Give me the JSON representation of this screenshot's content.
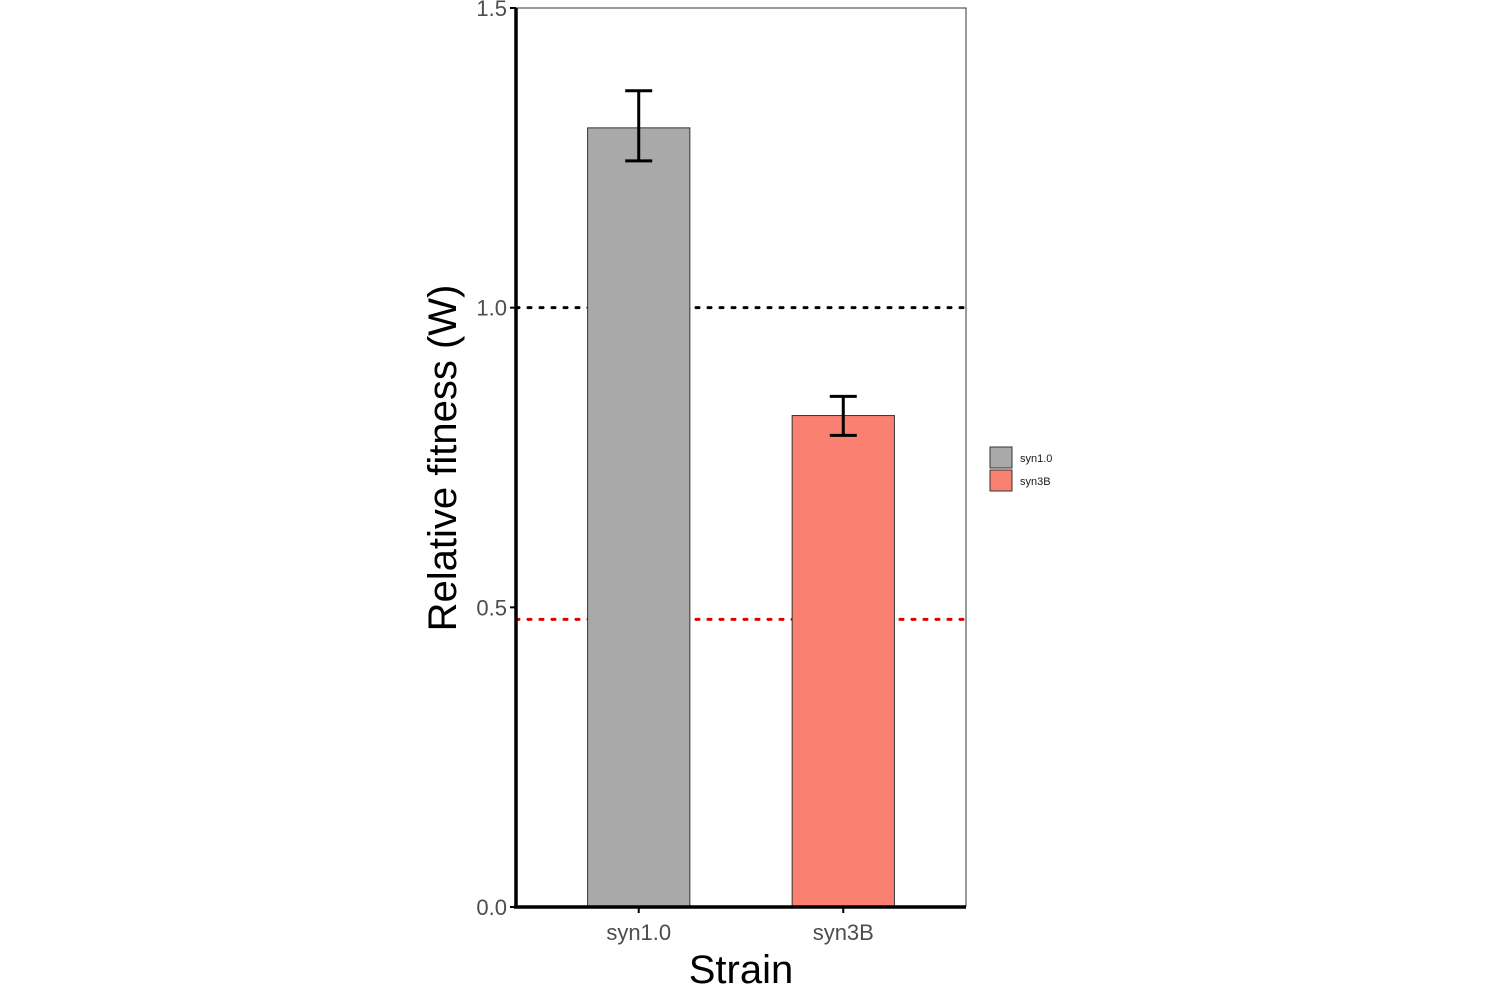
{
  "chart_data": {
    "type": "bar",
    "categories": [
      "syn1.0",
      "syn3B"
    ],
    "values": [
      1.3,
      0.82
    ],
    "error_bars": [
      {
        "low": 1.245,
        "high": 1.362
      },
      {
        "low": 0.787,
        "high": 0.852
      }
    ],
    "colors": [
      "#a9a9a9",
      "#fa8072"
    ],
    "xlabel": "Strain",
    "ylabel": "Relative fitness (W)",
    "ylim": [
      0,
      1.5
    ],
    "yticks": [
      "0.0",
      "0.5",
      "1.0",
      "1.5"
    ],
    "ytick_values": [
      0,
      0.5,
      1.0,
      1.5
    ],
    "reference_lines": [
      {
        "y": 1.0,
        "color": "#000000",
        "style": "dotted"
      },
      {
        "y": 0.48,
        "color": "#e00000",
        "style": "dotted"
      }
    ],
    "legend": {
      "position": "right",
      "entries": [
        {
          "label": "syn1.0",
          "color": "#a9a9a9"
        },
        {
          "label": "syn3B",
          "color": "#fa8072"
        }
      ]
    },
    "grid": false
  }
}
